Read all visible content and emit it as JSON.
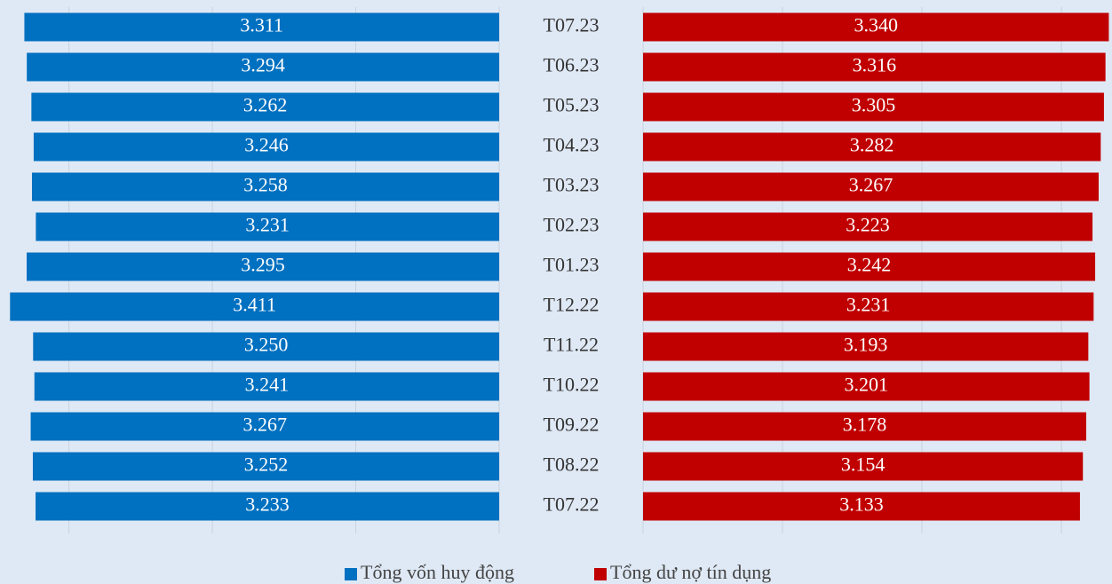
{
  "chart_data": {
    "type": "butterfly",
    "categories": [
      "T07.23",
      "T06.23",
      "T05.23",
      "T04.23",
      "T03.23",
      "T02.23",
      "T01.23",
      "T12.22",
      "T11.22",
      "T10.22",
      "T09.22",
      "T08.22",
      "T07.22"
    ],
    "series": [
      {
        "name": "Tổng vốn huy động",
        "color": "#0070c0",
        "side": "left",
        "values": [
          3.311,
          3.294,
          3.262,
          3.246,
          3.258,
          3.231,
          3.295,
          3.411,
          3.25,
          3.241,
          3.267,
          3.252,
          3.233
        ],
        "value_labels": [
          "3.311",
          "3.294",
          "3.262",
          "3.246",
          "3.258",
          "3.231",
          "3.295",
          "3.411",
          "3.250",
          "3.241",
          "3.267",
          "3.252",
          "3.233"
        ]
      },
      {
        "name": "Tổng dư nợ tín dụng",
        "color": "#c00000",
        "side": "right",
        "values": [
          3.34,
          3.316,
          3.305,
          3.282,
          3.267,
          3.223,
          3.242,
          3.231,
          3.193,
          3.201,
          3.178,
          3.154,
          3.133
        ],
        "value_labels": [
          "3.340",
          "3.316",
          "3.305",
          "3.282",
          "3.267",
          "3.223",
          "3.242",
          "3.231",
          "3.193",
          "3.201",
          "3.178",
          "3.154",
          "3.133"
        ]
      }
    ],
    "xlim": [
      0,
      3.45
    ],
    "xticks": [
      0,
      1,
      2,
      3
    ],
    "x2lim": [
      0,
      3.35
    ],
    "x2ticks": [
      0,
      1,
      2,
      3
    ],
    "grid": true,
    "legend": "bottom"
  }
}
